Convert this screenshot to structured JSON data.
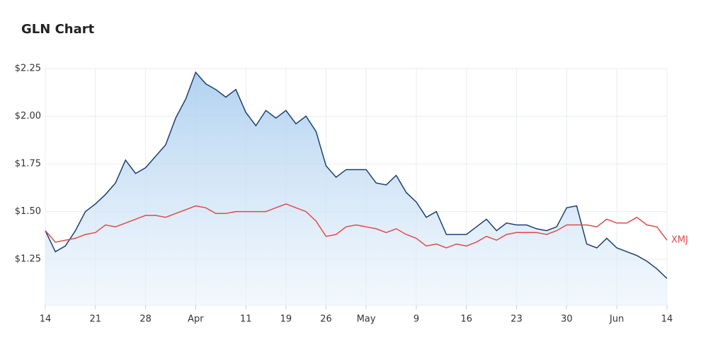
{
  "chart_data": {
    "type": "line",
    "title": "GLN Chart",
    "categories": [
      "14",
      null,
      null,
      null,
      null,
      "21",
      null,
      null,
      null,
      null,
      "28",
      null,
      null,
      null,
      null,
      "Apr",
      null,
      null,
      null,
      null,
      "11",
      null,
      null,
      null,
      "19",
      null,
      null,
      null,
      "26",
      null,
      null,
      null,
      "May",
      null,
      null,
      null,
      null,
      "9",
      null,
      null,
      null,
      null,
      "16",
      null,
      null,
      null,
      null,
      "23",
      null,
      null,
      null,
      null,
      "30",
      null,
      null,
      null,
      null,
      "Jun",
      null,
      null,
      null,
      null,
      "14"
    ],
    "series": [
      {
        "color": "#1b3f73",
        "area": true,
        "values": [
          1.4,
          1.29,
          1.32,
          1.4,
          1.5,
          1.54,
          1.59,
          1.65,
          1.77,
          1.7,
          1.73,
          1.79,
          1.85,
          1.99,
          2.09,
          2.23,
          2.17,
          2.14,
          2.1,
          2.14,
          2.02,
          1.95,
          2.03,
          1.99,
          2.03,
          1.96,
          2.0,
          1.92,
          1.74,
          1.68,
          1.72,
          1.72,
          1.72,
          1.65,
          1.64,
          1.69,
          1.6,
          1.55,
          1.47,
          1.5,
          1.38,
          1.38,
          1.38,
          1.42,
          1.46,
          1.4,
          1.44,
          1.43,
          1.43,
          1.41,
          1.4,
          1.42,
          1.52,
          1.53,
          1.33,
          1.31,
          1.36,
          1.31,
          1.29,
          1.27,
          1.24,
          1.2,
          1.15
        ]
      },
      {
        "name": "XMJ",
        "color": "#e04a4a",
        "values": [
          1.4,
          1.34,
          1.35,
          1.36,
          1.38,
          1.39,
          1.43,
          1.42,
          1.44,
          1.46,
          1.48,
          1.48,
          1.47,
          1.49,
          1.51,
          1.53,
          1.52,
          1.49,
          1.49,
          1.5,
          1.5,
          1.5,
          1.5,
          1.52,
          1.54,
          1.52,
          1.5,
          1.45,
          1.37,
          1.38,
          1.42,
          1.43,
          1.42,
          1.41,
          1.39,
          1.41,
          1.38,
          1.36,
          1.32,
          1.33,
          1.31,
          1.33,
          1.32,
          1.34,
          1.37,
          1.35,
          1.38,
          1.39,
          1.39,
          1.39,
          1.38,
          1.4,
          1.43,
          1.43,
          1.43,
          1.42,
          1.46,
          1.44,
          1.44,
          1.47,
          1.43,
          1.42,
          1.35
        ]
      }
    ],
    "ylim": [
      1.01,
      2.25
    ],
    "yticks": [
      {
        "value": 1.25,
        "label": "$1.25"
      },
      {
        "value": 1.5,
        "label": "$1.50"
      },
      {
        "value": 1.75,
        "label": "$1.75"
      },
      {
        "value": 2.0,
        "label": "$2.00"
      },
      {
        "value": 2.25,
        "label": "$2.25"
      }
    ],
    "grid": true
  }
}
